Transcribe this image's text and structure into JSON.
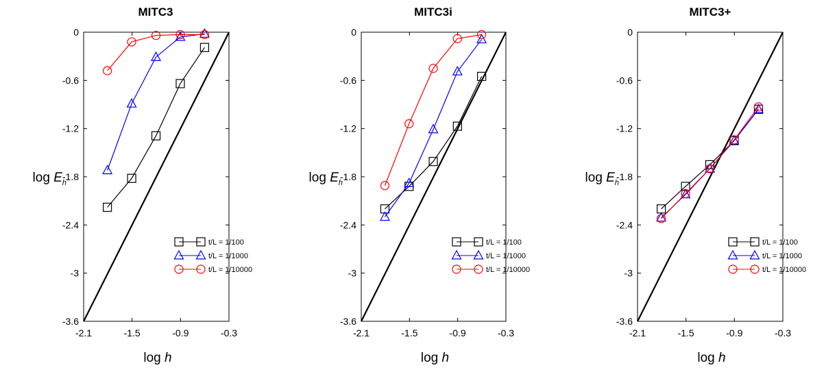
{
  "chart_data": [
    {
      "type": "line",
      "title": "MITC3",
      "xlabel": "log h",
      "ylabel": "log E_h",
      "xlim": [
        -2.1,
        -0.3
      ],
      "ylim": [
        -3.6,
        0
      ],
      "x_ticks": [
        "-2.1",
        "-1.5",
        "-0.9",
        "-0.3"
      ],
      "y_ticks": [
        "0",
        "-0.6",
        "-1.2",
        "-1.8",
        "-2.4",
        "-3",
        "-3.6"
      ],
      "legend_position": "right",
      "reference_line": {
        "x": [
          -2.1,
          -0.3
        ],
        "y": [
          -3.6,
          0
        ]
      },
      "series": [
        {
          "name": "t/L = 1/100",
          "color": "#000000",
          "marker": "square",
          "x": [
            -1.806,
            -1.505,
            -1.204,
            -0.903,
            -0.602
          ],
          "y": [
            -2.18,
            -1.82,
            -1.29,
            -0.64,
            -0.19
          ]
        },
        {
          "name": "t/L = 1/1000",
          "color": "#0000ff",
          "marker": "triangle",
          "x": [
            -1.806,
            -1.505,
            -1.204,
            -0.903,
            -0.602
          ],
          "y": [
            -1.72,
            -0.89,
            -0.31,
            -0.06,
            -0.02
          ]
        },
        {
          "name": "t/L = 1/10000",
          "color": "#ff0000",
          "marker": "circle",
          "x": [
            -1.806,
            -1.505,
            -1.204,
            -0.903,
            -0.602
          ],
          "y": [
            -0.48,
            -0.12,
            -0.04,
            -0.03,
            -0.03
          ]
        }
      ]
    },
    {
      "type": "line",
      "title": "MITC3i",
      "xlabel": "log h",
      "ylabel": "log E_h",
      "xlim": [
        -2.1,
        -0.3
      ],
      "ylim": [
        -3.6,
        0
      ],
      "x_ticks": [
        "-2.1",
        "-1.5",
        "-0.9",
        "-0.3"
      ],
      "y_ticks": [
        "0",
        "-0.6",
        "-1.2",
        "-1.8",
        "-2.4",
        "-3",
        "-3.6"
      ],
      "legend_position": "right",
      "reference_line": {
        "x": [
          -2.1,
          -0.3
        ],
        "y": [
          -3.6,
          0
        ]
      },
      "series": [
        {
          "name": "t/L = 1/100",
          "color": "#000000",
          "marker": "square",
          "x": [
            -1.806,
            -1.505,
            -1.204,
            -0.903,
            -0.602
          ],
          "y": [
            -2.2,
            -1.92,
            -1.61,
            -1.17,
            -0.55
          ]
        },
        {
          "name": "t/L = 1/1000",
          "color": "#0000ff",
          "marker": "triangle",
          "x": [
            -1.806,
            -1.505,
            -1.204,
            -0.903,
            -0.602
          ],
          "y": [
            -2.3,
            -1.88,
            -1.21,
            -0.49,
            -0.09
          ]
        },
        {
          "name": "t/L = 1/10000",
          "color": "#ff0000",
          "marker": "circle",
          "x": [
            -1.806,
            -1.505,
            -1.204,
            -0.903,
            -0.602
          ],
          "y": [
            -1.91,
            -1.14,
            -0.45,
            -0.08,
            -0.03
          ]
        }
      ]
    },
    {
      "type": "line",
      "title": "MITC3+",
      "xlabel": "log h",
      "ylabel": "log E_h",
      "xlim": [
        -2.1,
        -0.3
      ],
      "ylim": [
        -3.6,
        0
      ],
      "x_ticks": [
        "-2.1",
        "-1.5",
        "-0.9",
        "-0.3"
      ],
      "y_ticks": [
        "0",
        "-0.6",
        "-1.2",
        "-1.8",
        "-2.4",
        "-3",
        "-3.6"
      ],
      "legend_position": "right",
      "reference_line": {
        "x": [
          -2.1,
          -0.3
        ],
        "y": [
          -3.6,
          0
        ]
      },
      "series": [
        {
          "name": "t/L = 1/100",
          "color": "#000000",
          "marker": "square",
          "x": [
            -1.806,
            -1.505,
            -1.204,
            -0.903,
            -0.602
          ],
          "y": [
            -2.2,
            -1.92,
            -1.65,
            -1.35,
            -0.96
          ]
        },
        {
          "name": "t/L = 1/1000",
          "color": "#0000ff",
          "marker": "triangle",
          "x": [
            -1.806,
            -1.505,
            -1.204,
            -0.903,
            -0.602
          ],
          "y": [
            -2.31,
            -2.02,
            -1.7,
            -1.35,
            -0.96
          ]
        },
        {
          "name": "t/L = 1/10000",
          "color": "#ff0000",
          "marker": "circle",
          "x": [
            -1.806,
            -1.505,
            -1.204,
            -0.903,
            -0.602
          ],
          "y": [
            -2.32,
            -2.01,
            -1.7,
            -1.34,
            -0.93
          ]
        }
      ]
    }
  ]
}
